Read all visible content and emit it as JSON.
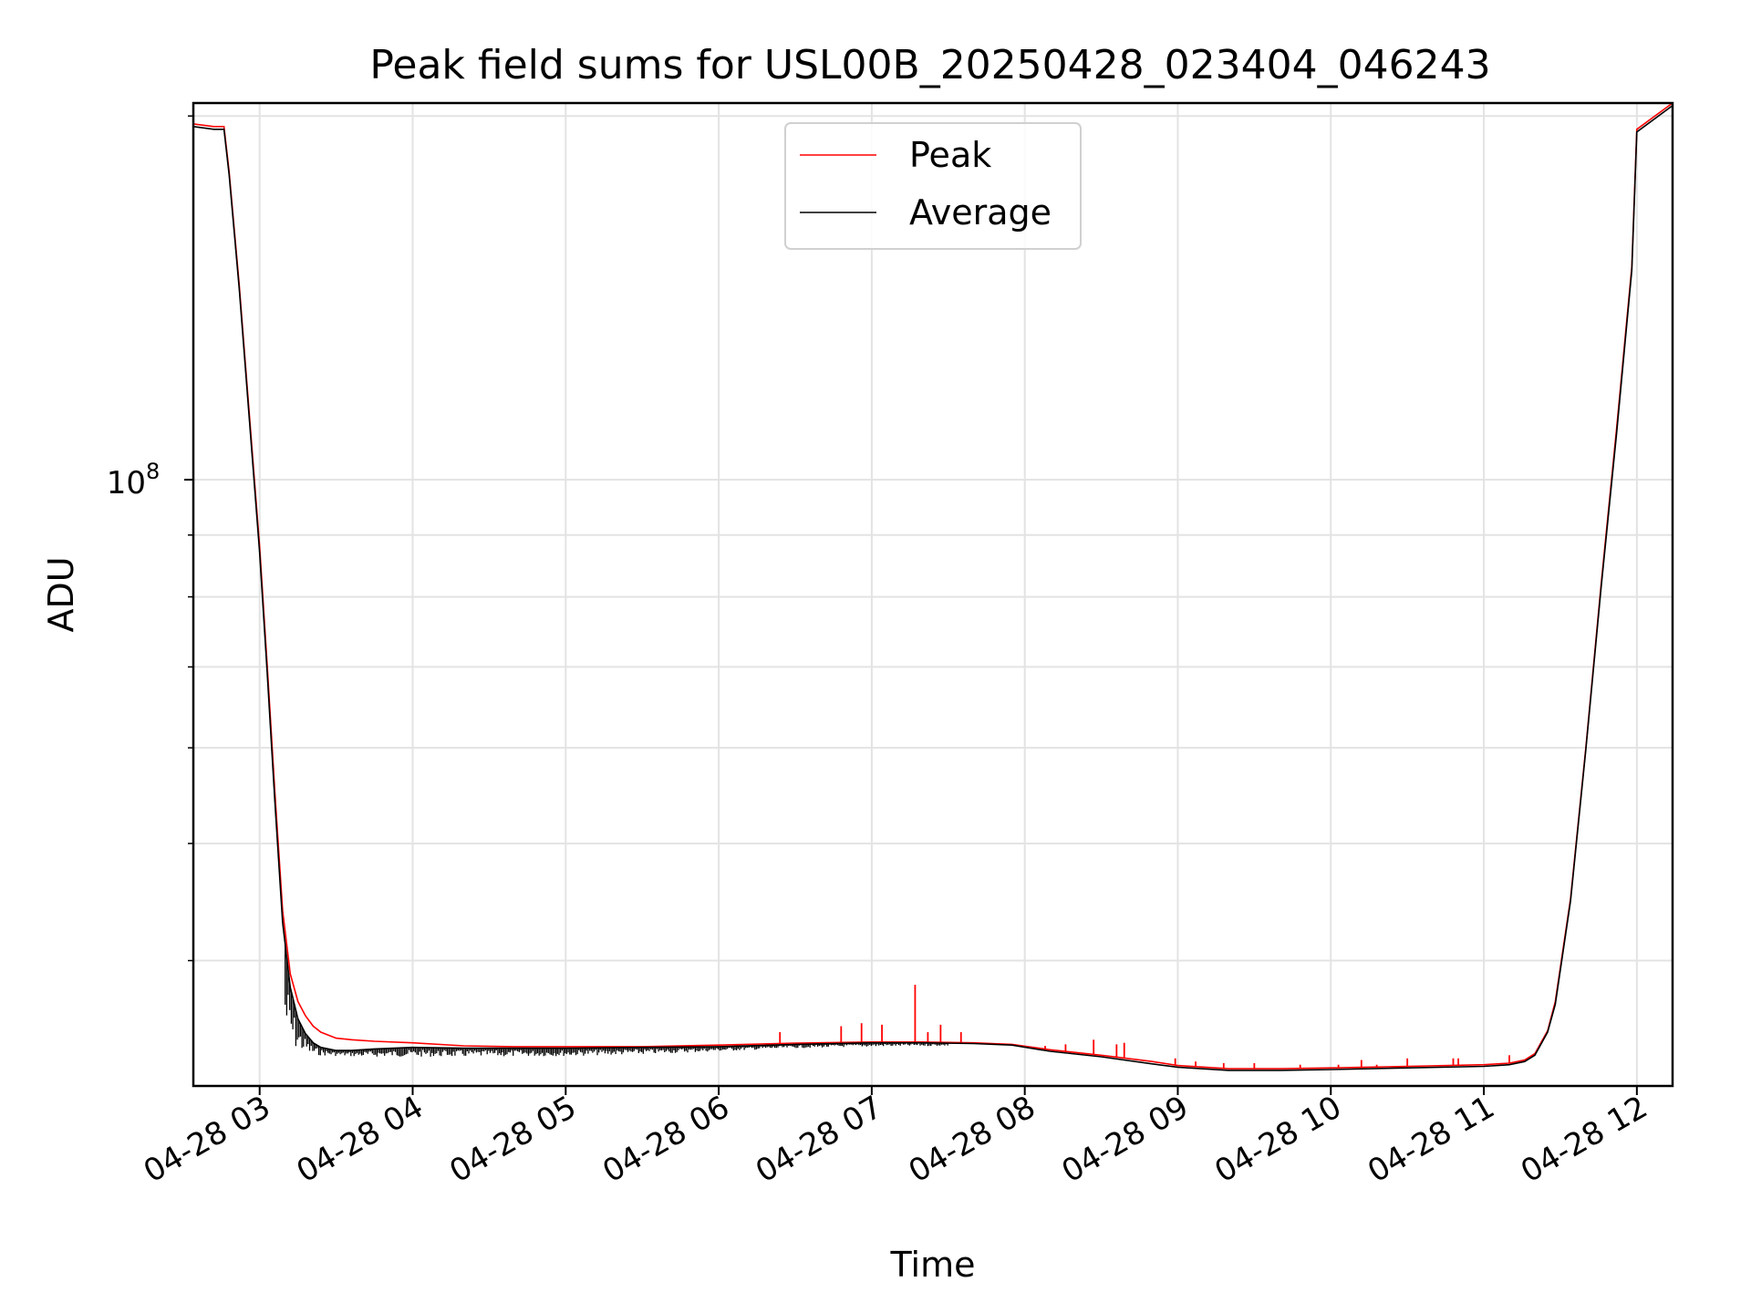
{
  "chart_data": {
    "type": "line",
    "title": "Peak field sums for USL00B_20250428_023404_046243",
    "xlabel": "Time",
    "ylabel": "ADU",
    "y_scale": "log",
    "x_range": [
      "04-28 02:34",
      "04-28 12:14"
    ],
    "ylim": [
      31500000.0,
      205000000.0
    ],
    "grid": true,
    "legend_position": "upper center",
    "x_ticks": [
      "04-28 03",
      "04-28 04",
      "04-28 05",
      "04-28 06",
      "04-28 07",
      "04-28 08",
      "04-28 09",
      "04-28 10",
      "04-28 11",
      "04-28 12"
    ],
    "y_ticks": [
      {
        "value": 100000000,
        "base": "10",
        "exponent": "8"
      }
    ],
    "y_minor_ticks": [
      40000000,
      50000000,
      60000000,
      70000000,
      80000000,
      90000000,
      200000000
    ],
    "colors": {
      "peak": "#ff0000",
      "average": "#000000",
      "grid": "#e3e3e3"
    },
    "series": [
      {
        "name": "Peak",
        "color": "#ff0000",
        "x": [
          "02:34",
          "02:42",
          "02:46",
          "02:48",
          "02:52",
          "02:56",
          "03:00",
          "03:03",
          "03:06",
          "03:09",
          "03:12",
          "03:15",
          "03:18",
          "03:21",
          "03:24",
          "03:30",
          "03:36",
          "03:45",
          "04:00",
          "04:20",
          "04:40",
          "05:00",
          "05:30",
          "06:00",
          "06:30",
          "07:00",
          "07:20",
          "07:40",
          "07:55",
          "08:10",
          "08:30",
          "08:50",
          "09:00",
          "09:20",
          "09:40",
          "10:00",
          "10:30",
          "11:00",
          "11:10",
          "11:16",
          "11:20",
          "11:25",
          "11:28",
          "11:34",
          "11:40",
          "11:46",
          "11:52",
          "11:58",
          "12:00",
          "12:14"
        ],
        "y": [
          197000000,
          196000000,
          196000000,
          180000000,
          145000000,
          113000000,
          88000000,
          70000000,
          55000000,
          44000000,
          39000000,
          37000000,
          36000000,
          35300000,
          34900000,
          34500000,
          34400000,
          34300000,
          34200000,
          34000000,
          33950000,
          33950000,
          33950000,
          34050000,
          34180000,
          34250000,
          34250000,
          34200000,
          34100000,
          33750000,
          33400000,
          33000000,
          32750000,
          32550000,
          32550000,
          32600000,
          32700000,
          32800000,
          32900000,
          33100000,
          33500000,
          35000000,
          37000000,
          45000000,
          60000000,
          82000000,
          110000000,
          150000000,
          195000000,
          205000000
        ],
        "spikes": [
          {
            "x": "06:24",
            "y": 34900000
          },
          {
            "x": "06:48",
            "y": 35300000
          },
          {
            "x": "06:56",
            "y": 35500000
          },
          {
            "x": "07:04",
            "y": 35400000
          },
          {
            "x": "07:17",
            "y": 38200000
          },
          {
            "x": "07:22",
            "y": 34900000
          },
          {
            "x": "07:27",
            "y": 35400000
          },
          {
            "x": "07:35",
            "y": 34900000
          },
          {
            "x": "08:08",
            "y": 34000000
          },
          {
            "x": "08:16",
            "y": 34100000
          },
          {
            "x": "08:27",
            "y": 34400000
          },
          {
            "x": "08:36",
            "y": 34100000
          },
          {
            "x": "08:39",
            "y": 34200000
          },
          {
            "x": "08:59",
            "y": 33200000
          },
          {
            "x": "09:07",
            "y": 33000000
          },
          {
            "x": "09:10",
            "y": 32700000
          },
          {
            "x": "09:18",
            "y": 32900000
          },
          {
            "x": "09:30",
            "y": 32900000
          },
          {
            "x": "09:48",
            "y": 32800000
          },
          {
            "x": "09:53",
            "y": 32600000
          },
          {
            "x": "10:03",
            "y": 32800000
          },
          {
            "x": "10:12",
            "y": 33100000
          },
          {
            "x": "10:18",
            "y": 32800000
          },
          {
            "x": "10:30",
            "y": 33200000
          },
          {
            "x": "10:36",
            "y": 32700000
          },
          {
            "x": "10:48",
            "y": 33200000
          },
          {
            "x": "10:50",
            "y": 33200000
          },
          {
            "x": "10:58",
            "y": 32800000
          },
          {
            "x": "11:10",
            "y": 33400000
          }
        ]
      },
      {
        "name": "Average",
        "color": "#000000",
        "x": [
          "02:34",
          "02:42",
          "02:46",
          "02:48",
          "02:52",
          "02:56",
          "03:00",
          "03:03",
          "03:06",
          "03:09",
          "03:12",
          "03:15",
          "03:18",
          "03:21",
          "03:24",
          "03:30",
          "03:36",
          "03:45",
          "04:00",
          "04:20",
          "04:40",
          "05:00",
          "05:30",
          "06:00",
          "06:30",
          "07:00",
          "07:20",
          "07:40",
          "07:55",
          "08:10",
          "08:30",
          "08:50",
          "09:00",
          "09:20",
          "09:40",
          "10:00",
          "10:30",
          "11:00",
          "11:10",
          "11:16",
          "11:20",
          "11:25",
          "11:28",
          "11:34",
          "11:40",
          "11:46",
          "11:52",
          "11:58",
          "12:00",
          "12:14"
        ],
        "y": [
          196000000,
          195000000,
          195000000,
          179000000,
          144000000,
          112000000,
          87000000,
          69000000,
          54000000,
          43000000,
          38000000,
          35800000,
          34800000,
          34200000,
          33900000,
          33700000,
          33700000,
          33800000,
          33900000,
          33850000,
          33850000,
          33850000,
          33900000,
          33950000,
          34100000,
          34200000,
          34200000,
          34150000,
          34050000,
          33650000,
          33300000,
          32850000,
          32650000,
          32450000,
          32450000,
          32500000,
          32600000,
          32700000,
          32800000,
          33000000,
          33400000,
          34900000,
          36800000,
          44800000,
          59800000,
          81500000,
          109000000,
          149000000,
          194000000,
          204000000
        ],
        "noise_band": [
          {
            "x": "03:10",
            "low": 34000000
          },
          {
            "x": "03:20",
            "low": 33400000
          },
          {
            "x": "03:40",
            "low": 33300000
          },
          {
            "x": "04:00",
            "low": 33300000
          },
          {
            "x": "04:30",
            "low": 33300000
          },
          {
            "x": "05:00",
            "low": 33350000
          },
          {
            "x": "05:30",
            "low": 33450000
          },
          {
            "x": "06:00",
            "low": 33650000
          },
          {
            "x": "06:30",
            "low": 33850000
          },
          {
            "x": "07:00",
            "low": 33950000
          },
          {
            "x": "07:30",
            "low": 34000000
          }
        ]
      }
    ]
  }
}
